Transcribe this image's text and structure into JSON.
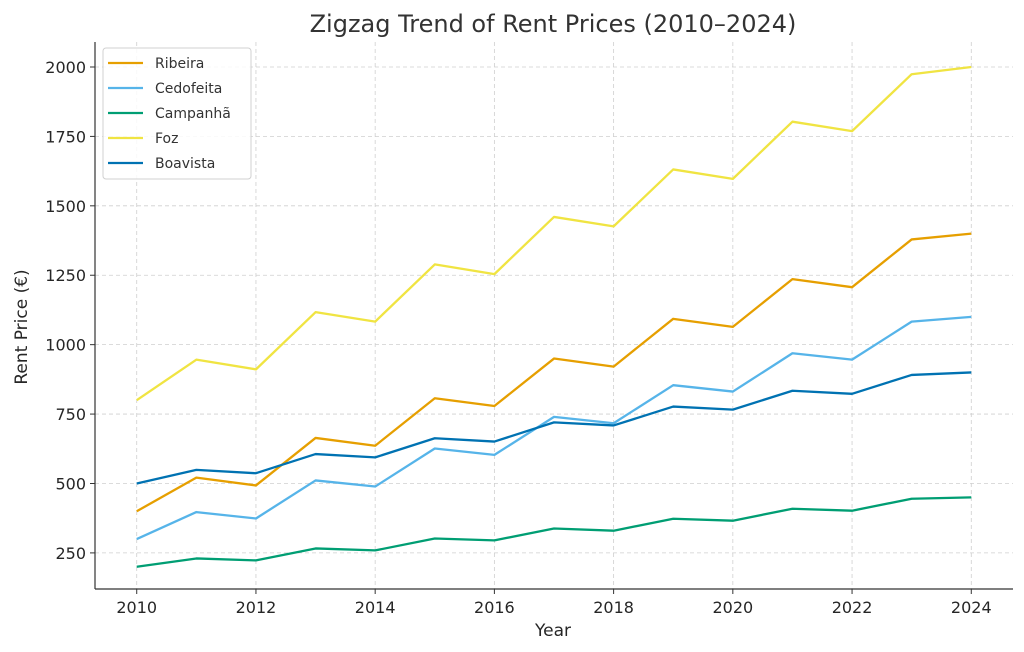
{
  "chart_data": {
    "type": "line",
    "title": "Zigzag Trend of Rent Prices (2010–2024)",
    "xlabel": "Year",
    "ylabel": "Rent Price (€)",
    "x": [
      2010,
      2011,
      2012,
      2013,
      2014,
      2015,
      2016,
      2017,
      2018,
      2019,
      2020,
      2021,
      2022,
      2023,
      2024
    ],
    "xticks": [
      "2010",
      "2012",
      "2014",
      "2016",
      "2018",
      "2020",
      "2022",
      "2024"
    ],
    "yticks": [
      "250",
      "500",
      "750",
      "1000",
      "1250",
      "1500",
      "1750",
      "2000"
    ],
    "xlim": [
      2009.3,
      2024.7
    ],
    "ylim": [
      120,
      2090
    ],
    "grid": true,
    "legend_position": "top-left",
    "series": [
      {
        "name": "Ribeira",
        "color": "#E69F00",
        "values": [
          400,
          521,
          493,
          664,
          636,
          807,
          779,
          950,
          921,
          1093,
          1064,
          1236,
          1207,
          1379,
          1400
        ]
      },
      {
        "name": "Cedofeita",
        "color": "#56B4E9",
        "values": [
          300,
          397,
          374,
          511,
          489,
          626,
          603,
          740,
          717,
          854,
          831,
          969,
          946,
          1083,
          1100
        ]
      },
      {
        "name": "Campanhã",
        "color": "#009E73",
        "values": [
          200,
          230,
          223,
          266,
          259,
          302,
          295,
          338,
          330,
          373,
          366,
          409,
          402,
          445,
          450
        ]
      },
      {
        "name": "Foz",
        "color": "#F0E442",
        "values": [
          800,
          946,
          911,
          1117,
          1083,
          1289,
          1254,
          1460,
          1426,
          1631,
          1597,
          1803,
          1769,
          1974,
          2000
        ]
      },
      {
        "name": "Boavista",
        "color": "#0072B2",
        "values": [
          500,
          549,
          537,
          606,
          594,
          663,
          651,
          720,
          709,
          777,
          766,
          834,
          823,
          891,
          900
        ]
      }
    ]
  }
}
